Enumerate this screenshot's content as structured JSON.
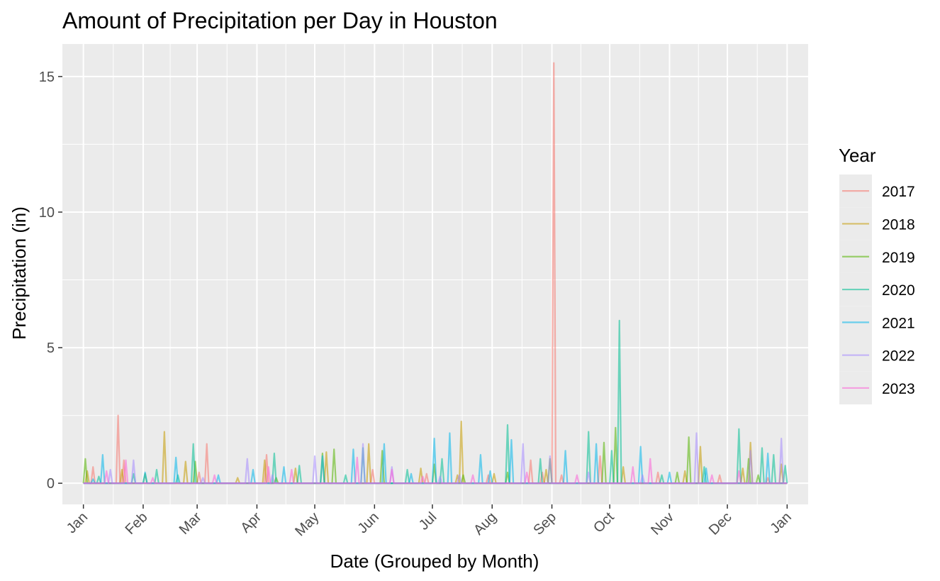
{
  "chart_data": {
    "type": "line",
    "title": "Amount of Precipitation per Day in Houston",
    "xlabel": "Date (Grouped by Month)",
    "ylabel": "Precipitation (in)",
    "x_tick_labels": [
      "Jan",
      "Feb",
      "Mar",
      "Apr",
      "May",
      "Jun",
      "Jul",
      "Aug",
      "Sep",
      "Oct",
      "Nov",
      "Dec",
      "Jan"
    ],
    "y_ticks": [
      0,
      5,
      10,
      15
    ],
    "ylim": [
      -0.78,
      16.2
    ],
    "xlim_day_of_year": [
      -10.9,
      375.9
    ],
    "grid": true,
    "legend": {
      "title": "Year",
      "placement": "right"
    },
    "series": [
      {
        "name": "2017",
        "color": "#F8766D",
        "points": [
          [
            5,
            0.6
          ],
          [
            18,
            2.5
          ],
          [
            21,
            0.85
          ],
          [
            60,
            0.4
          ],
          [
            64,
            1.45
          ],
          [
            95,
            1.05
          ],
          [
            150,
            0.5
          ],
          [
            178,
            0.35
          ],
          [
            210,
            0.3
          ],
          [
            232,
            0.85
          ],
          [
            238,
            0.4
          ],
          [
            244,
            15.5
          ],
          [
            248,
            0.3
          ],
          [
            268,
            1.0
          ],
          [
            298,
            0.4
          ],
          [
            330,
            0.3
          ],
          [
            355,
            0.2
          ]
        ]
      },
      {
        "name": "2018",
        "color": "#C49A00",
        "points": [
          [
            2,
            0.45
          ],
          [
            20,
            0.5
          ],
          [
            42,
            1.9
          ],
          [
            53,
            0.8
          ],
          [
            80,
            0.2
          ],
          [
            94,
            0.85
          ],
          [
            110,
            0.55
          ],
          [
            126,
            1.15
          ],
          [
            148,
            1.45
          ],
          [
            175,
            0.55
          ],
          [
            194,
            0.3
          ],
          [
            196,
            2.28
          ],
          [
            213,
            0.35
          ],
          [
            240,
            0.5
          ],
          [
            280,
            0.6
          ],
          [
            312,
            0.45
          ],
          [
            320,
            1.35
          ],
          [
            342,
            0.55
          ],
          [
            346,
            1.5
          ],
          [
            362,
            0.7
          ]
        ]
      },
      {
        "name": "2019",
        "color": "#53B400",
        "points": [
          [
            1,
            0.9
          ],
          [
            32,
            0.35
          ],
          [
            58,
            0.8
          ],
          [
            100,
            0.2
          ],
          [
            124,
            1.1
          ],
          [
            130,
            1.25
          ],
          [
            155,
            1.2
          ],
          [
            182,
            0.7
          ],
          [
            197,
            0.3
          ],
          [
            220,
            0.4
          ],
          [
            242,
            0.9
          ],
          [
            270,
            1.5
          ],
          [
            276,
            2.05
          ],
          [
            308,
            0.4
          ],
          [
            314,
            1.7
          ],
          [
            345,
            0.9
          ],
          [
            350,
            0.3
          ]
        ]
      },
      {
        "name": "2020",
        "color": "#00C094",
        "points": [
          [
            8,
            0.25
          ],
          [
            26,
            0.35
          ],
          [
            38,
            0.5
          ],
          [
            49,
            0.3
          ],
          [
            57,
            1.45
          ],
          [
            99,
            1.1
          ],
          [
            112,
            0.65
          ],
          [
            136,
            0.3
          ],
          [
            145,
            1.3
          ],
          [
            168,
            0.5
          ],
          [
            186,
            0.9
          ],
          [
            220,
            2.15
          ],
          [
            237,
            0.9
          ],
          [
            262,
            1.9
          ],
          [
            274,
            1.2
          ],
          [
            278,
            6.0
          ],
          [
            300,
            0.3
          ],
          [
            322,
            0.6
          ],
          [
            340,
            2.0
          ],
          [
            352,
            1.3
          ],
          [
            358,
            1.05
          ],
          [
            364,
            0.65
          ]
        ]
      },
      {
        "name": "2021",
        "color": "#00B6EB",
        "points": [
          [
            5,
            0.15
          ],
          [
            10,
            1.05
          ],
          [
            32,
            0.4
          ],
          [
            48,
            0.95
          ],
          [
            70,
            0.3
          ],
          [
            88,
            0.5
          ],
          [
            104,
            0.6
          ],
          [
            124,
            1.0
          ],
          [
            140,
            1.25
          ],
          [
            156,
            1.45
          ],
          [
            170,
            0.35
          ],
          [
            182,
            1.65
          ],
          [
            190,
            1.85
          ],
          [
            206,
            1.05
          ],
          [
            211,
            0.45
          ],
          [
            222,
            1.6
          ],
          [
            250,
            1.2
          ],
          [
            266,
            1.45
          ],
          [
            289,
            1.35
          ],
          [
            304,
            0.4
          ],
          [
            323,
            0.55
          ],
          [
            355,
            1.1
          ]
        ]
      },
      {
        "name": "2022",
        "color": "#A58AFF",
        "points": [
          [
            14,
            0.5
          ],
          [
            26,
            0.85
          ],
          [
            62,
            0.2
          ],
          [
            85,
            0.9
          ],
          [
            98,
            0.3
          ],
          [
            120,
            1.0
          ],
          [
            145,
            1.45
          ],
          [
            160,
            0.6
          ],
          [
            185,
            0.25
          ],
          [
            195,
            0.3
          ],
          [
            228,
            1.45
          ],
          [
            242,
            1.0
          ],
          [
            262,
            0.4
          ],
          [
            290,
            0.3
          ],
          [
            318,
            1.85
          ],
          [
            346,
            1.2
          ],
          [
            362,
            1.65
          ],
          [
            368,
            1.4
          ]
        ]
      },
      {
        "name": "2023",
        "color": "#FB61D7",
        "points": [
          [
            12,
            0.45
          ],
          [
            22,
            0.85
          ],
          [
            36,
            0.2
          ],
          [
            68,
            0.3
          ],
          [
            96,
            0.6
          ],
          [
            108,
            0.5
          ],
          [
            142,
            0.95
          ],
          [
            160,
            0.5
          ],
          [
            176,
            0.25
          ],
          [
            202,
            0.3
          ],
          [
            230,
            0.4
          ],
          [
            256,
            0.3
          ],
          [
            285,
            0.6
          ],
          [
            294,
            0.9
          ],
          [
            326,
            0.3
          ],
          [
            340,
            0.45
          ]
        ]
      }
    ]
  }
}
